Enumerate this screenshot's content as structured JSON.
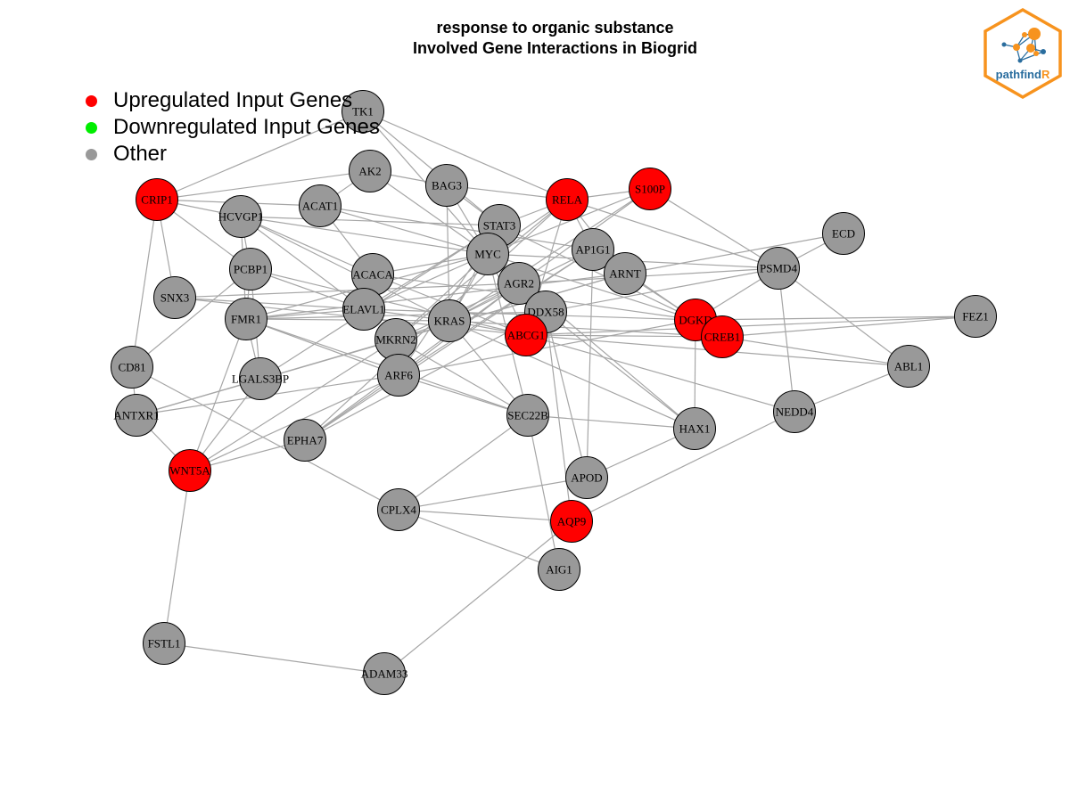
{
  "title": {
    "line1": "response to organic substance",
    "line2": "Involved Gene Interactions in Biogrid"
  },
  "colors": {
    "upregulated": "#ff0000",
    "downregulated": "#00ee00",
    "other": "#999999",
    "edge": "#a6a6a6",
    "logo_orange": "#f7931e",
    "logo_blue": "#2a6d9e"
  },
  "legend": [
    {
      "label": "Upregulated Input Genes",
      "color": "#ff0000"
    },
    {
      "label": "Downregulated Input Genes",
      "color": "#00ee00"
    },
    {
      "label": "Other",
      "color": "#999999"
    }
  ],
  "logo": {
    "text_main": "pathfind",
    "text_accent": "R"
  },
  "nodes": [
    {
      "id": "TK1",
      "type": "other"
    },
    {
      "id": "AK2",
      "type": "other"
    },
    {
      "id": "BAG3",
      "type": "other"
    },
    {
      "id": "RELA",
      "type": "up"
    },
    {
      "id": "S100P",
      "type": "up"
    },
    {
      "id": "CRIP1",
      "type": "up"
    },
    {
      "id": "HCVGP1",
      "type": "other"
    },
    {
      "id": "ACAT1",
      "type": "other"
    },
    {
      "id": "STAT3",
      "type": "other"
    },
    {
      "id": "ECD",
      "type": "other"
    },
    {
      "id": "MYC",
      "type": "other"
    },
    {
      "id": "AP1G1",
      "type": "other"
    },
    {
      "id": "PSMD4",
      "type": "other"
    },
    {
      "id": "PCBP1",
      "type": "other"
    },
    {
      "id": "ACACA",
      "type": "other"
    },
    {
      "id": "ARNT",
      "type": "other"
    },
    {
      "id": "AGR2",
      "type": "other"
    },
    {
      "id": "SNX3",
      "type": "other"
    },
    {
      "id": "ELAVL1",
      "type": "other"
    },
    {
      "id": "DDX58",
      "type": "other"
    },
    {
      "id": "FEZ1",
      "type": "other"
    },
    {
      "id": "FMR1",
      "type": "other"
    },
    {
      "id": "KRAS",
      "type": "other"
    },
    {
      "id": "ABCG1",
      "type": "up"
    },
    {
      "id": "DGKD",
      "type": "up"
    },
    {
      "id": "CREB1",
      "type": "up"
    },
    {
      "id": "MKRN2",
      "type": "other"
    },
    {
      "id": "CD81",
      "type": "other"
    },
    {
      "id": "ABL1",
      "type": "other"
    },
    {
      "id": "LGALS3BP",
      "type": "other"
    },
    {
      "id": "ARF6",
      "type": "other"
    },
    {
      "id": "NEDD4",
      "type": "other"
    },
    {
      "id": "ANTXR1",
      "type": "other"
    },
    {
      "id": "SEC22B",
      "type": "other"
    },
    {
      "id": "HAX1",
      "type": "other"
    },
    {
      "id": "EPHA7",
      "type": "other"
    },
    {
      "id": "WNT5A",
      "type": "up"
    },
    {
      "id": "APOD",
      "type": "other"
    },
    {
      "id": "CPLX4",
      "type": "other"
    },
    {
      "id": "AQP9",
      "type": "up"
    },
    {
      "id": "AIG1",
      "type": "other"
    },
    {
      "id": "FSTL1",
      "type": "other"
    },
    {
      "id": "ADAM33",
      "type": "other"
    }
  ],
  "edges": [
    [
      "TK1",
      "CRIP1"
    ],
    [
      "TK1",
      "MYC"
    ],
    [
      "TK1",
      "RELA"
    ],
    [
      "TK1",
      "STAT3"
    ],
    [
      "AK2",
      "CRIP1"
    ],
    [
      "AK2",
      "BAG3"
    ],
    [
      "AK2",
      "MYC"
    ],
    [
      "AK2",
      "ACAT1"
    ],
    [
      "BAG3",
      "RELA"
    ],
    [
      "BAG3",
      "MYC"
    ],
    [
      "BAG3",
      "KRAS"
    ],
    [
      "BAG3",
      "STAT3"
    ],
    [
      "RELA",
      "S100P"
    ],
    [
      "RELA",
      "MYC"
    ],
    [
      "RELA",
      "STAT3"
    ],
    [
      "RELA",
      "PSMD4"
    ],
    [
      "RELA",
      "ARNT"
    ],
    [
      "RELA",
      "AP1G1"
    ],
    [
      "RELA",
      "MKRN2"
    ],
    [
      "RELA",
      "ABCG1"
    ],
    [
      "RELA",
      "EPHA7"
    ],
    [
      "S100P",
      "PSMD4"
    ],
    [
      "S100P",
      "AGR2"
    ],
    [
      "S100P",
      "KRAS"
    ],
    [
      "S100P",
      "MYC"
    ],
    [
      "CRIP1",
      "ACAT1"
    ],
    [
      "CRIP1",
      "SNX3"
    ],
    [
      "CRIP1",
      "CD81"
    ],
    [
      "CRIP1",
      "PCBP1"
    ],
    [
      "CRIP1",
      "HCVGP1"
    ],
    [
      "HCVGP1",
      "PCBP1"
    ],
    [
      "HCVGP1",
      "FMR1"
    ],
    [
      "HCVGP1",
      "ELAVL1"
    ],
    [
      "HCVGP1",
      "MYC"
    ],
    [
      "HCVGP1",
      "STAT3"
    ],
    [
      "HCVGP1",
      "ACACA"
    ],
    [
      "HCVGP1",
      "KRAS"
    ],
    [
      "ACAT1",
      "ACACA"
    ],
    [
      "ACAT1",
      "MYC"
    ],
    [
      "ACAT1",
      "AP1G1"
    ],
    [
      "STAT3",
      "MYC"
    ],
    [
      "STAT3",
      "ELAVL1"
    ],
    [
      "STAT3",
      "ARF6"
    ],
    [
      "STAT3",
      "LGALS3BP"
    ],
    [
      "STAT3",
      "DGKD"
    ],
    [
      "STAT3",
      "KRAS"
    ],
    [
      "MYC",
      "ELAVL1"
    ],
    [
      "MYC",
      "PSMD4"
    ],
    [
      "MYC",
      "KRAS"
    ],
    [
      "MYC",
      "SEC22B"
    ],
    [
      "MYC",
      "HAX1"
    ],
    [
      "MYC",
      "DGKD"
    ],
    [
      "MYC",
      "ACACA"
    ],
    [
      "MYC",
      "FMR1"
    ],
    [
      "MYC",
      "ABCG1"
    ],
    [
      "MYC",
      "MKRN2"
    ],
    [
      "AP1G1",
      "ARNT"
    ],
    [
      "AP1G1",
      "KRAS"
    ],
    [
      "AP1G1",
      "ARF6"
    ],
    [
      "AP1G1",
      "APOD"
    ],
    [
      "AP1G1",
      "EPHA7"
    ],
    [
      "AP1G1",
      "DGKD"
    ],
    [
      "PSMD4",
      "ECD"
    ],
    [
      "PSMD4",
      "NEDD4"
    ],
    [
      "PSMD4",
      "ABL1"
    ],
    [
      "PSMD4",
      "DGKD"
    ],
    [
      "PSMD4",
      "AGR2"
    ],
    [
      "PSMD4",
      "DDX58"
    ],
    [
      "ECD",
      "ARNT"
    ],
    [
      "PCBP1",
      "FMR1"
    ],
    [
      "PCBP1",
      "ELAVL1"
    ],
    [
      "PCBP1",
      "LGALS3BP"
    ],
    [
      "PCBP1",
      "ABCG1"
    ],
    [
      "PCBP1",
      "CD81"
    ],
    [
      "ACACA",
      "ELAVL1"
    ],
    [
      "ACACA",
      "DGKD"
    ],
    [
      "ACACA",
      "ABCG1"
    ],
    [
      "ARNT",
      "CREB1"
    ],
    [
      "ARNT",
      "MKRN2"
    ],
    [
      "ARNT",
      "ANTXR1"
    ],
    [
      "ARNT",
      "FMR1"
    ],
    [
      "AGR2",
      "KRAS"
    ],
    [
      "AGR2",
      "MKRN2"
    ],
    [
      "AGR2",
      "EPHA7"
    ],
    [
      "AGR2",
      "SNX3"
    ],
    [
      "AGR2",
      "ARF6"
    ],
    [
      "SNX3",
      "ABCG1"
    ],
    [
      "SNX3",
      "ELAVL1"
    ],
    [
      "ELAVL1",
      "KRAS"
    ],
    [
      "ELAVL1",
      "FMR1"
    ],
    [
      "ELAVL1",
      "DGKD"
    ],
    [
      "DDX58",
      "FMR1"
    ],
    [
      "DDX58",
      "AQP9"
    ],
    [
      "DDX58",
      "EPHA7"
    ],
    [
      "DDX58",
      "HAX1"
    ],
    [
      "DDX58",
      "APOD"
    ],
    [
      "FEZ1",
      "DGKD"
    ],
    [
      "FEZ1",
      "ABCG1"
    ],
    [
      "FEZ1",
      "CREB1"
    ],
    [
      "FMR1",
      "KRAS"
    ],
    [
      "FMR1",
      "WNT5A"
    ],
    [
      "FMR1",
      "LGALS3BP"
    ],
    [
      "FMR1",
      "ARF6"
    ],
    [
      "FMR1",
      "SEC22B"
    ],
    [
      "KRAS",
      "ABCG1"
    ],
    [
      "KRAS",
      "SEC22B"
    ],
    [
      "KRAS",
      "MKRN2"
    ],
    [
      "KRAS",
      "CREB1"
    ],
    [
      "KRAS",
      "HAX1"
    ],
    [
      "ABCG1",
      "CREB1"
    ],
    [
      "ABCG1",
      "NEDD4"
    ],
    [
      "ABCG1",
      "ABL1"
    ],
    [
      "DGKD",
      "CREB1"
    ],
    [
      "DGKD",
      "HAX1"
    ],
    [
      "DGKD",
      "ARF6"
    ],
    [
      "CREB1",
      "ABL1"
    ],
    [
      "MKRN2",
      "ARF6"
    ],
    [
      "MKRN2",
      "SEC22B"
    ],
    [
      "MKRN2",
      "ANTXR1"
    ],
    [
      "MKRN2",
      "WNT5A"
    ],
    [
      "CD81",
      "ANTXR1"
    ],
    [
      "CD81",
      "CPLX4"
    ],
    [
      "ABL1",
      "NEDD4"
    ],
    [
      "LGALS3BP",
      "WNT5A"
    ],
    [
      "ARF6",
      "ANTXR1"
    ],
    [
      "ARF6",
      "SEC22B"
    ],
    [
      "ARF6",
      "EPHA7"
    ],
    [
      "ARF6",
      "WNT5A"
    ],
    [
      "NEDD4",
      "AQP9"
    ],
    [
      "ANTXR1",
      "WNT5A"
    ],
    [
      "SEC22B",
      "CPLX4"
    ],
    [
      "SEC22B",
      "HAX1"
    ],
    [
      "SEC22B",
      "AIG1"
    ],
    [
      "HAX1",
      "APOD"
    ],
    [
      "EPHA7",
      "WNT5A"
    ],
    [
      "WNT5A",
      "FSTL1"
    ],
    [
      "APOD",
      "CPLX4"
    ],
    [
      "CPLX4",
      "AQP9"
    ],
    [
      "CPLX4",
      "AIG1"
    ],
    [
      "AQP9",
      "ADAM33"
    ],
    [
      "FSTL1",
      "ADAM33"
    ]
  ]
}
